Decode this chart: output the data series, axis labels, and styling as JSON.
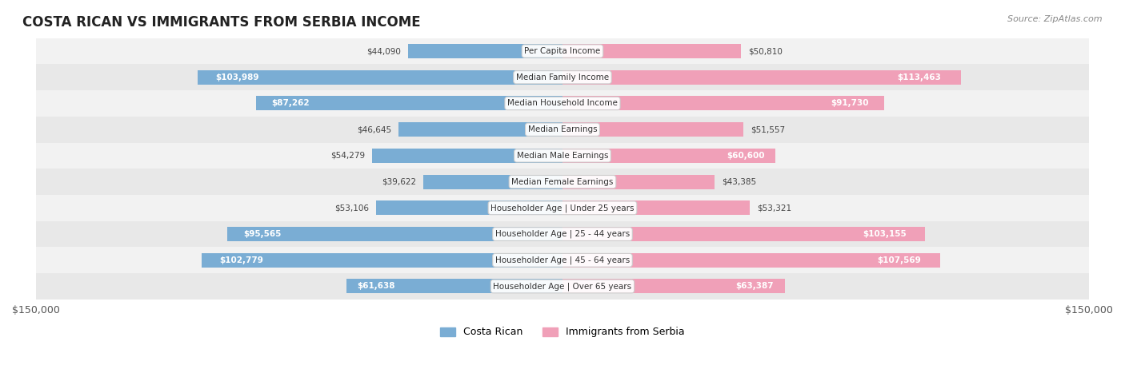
{
  "title": "COSTA RICAN VS IMMIGRANTS FROM SERBIA INCOME",
  "source": "Source: ZipAtlas.com",
  "categories": [
    "Per Capita Income",
    "Median Family Income",
    "Median Household Income",
    "Median Earnings",
    "Median Male Earnings",
    "Median Female Earnings",
    "Householder Age | Under 25 years",
    "Householder Age | 25 - 44 years",
    "Householder Age | 45 - 64 years",
    "Householder Age | Over 65 years"
  ],
  "costa_rican": [
    44090,
    103989,
    87262,
    46645,
    54279,
    39622,
    53106,
    95565,
    102779,
    61638
  ],
  "serbia": [
    50810,
    113463,
    91730,
    51557,
    60600,
    43385,
    53321,
    103155,
    107569,
    63387
  ],
  "max_val": 150000,
  "color_blue": "#7aadd4",
  "color_pink": "#f0a0b8",
  "color_blue_dark": "#6699cc",
  "color_pink_dark": "#f08aaa",
  "bg_row_light": "#f0f0f0",
  "bg_row_dark": "#e8e8e8",
  "label_bg": "#ffffff",
  "bar_height": 0.55,
  "legend_blue": "Costa Rican",
  "legend_pink": "Immigrants from Serbia"
}
